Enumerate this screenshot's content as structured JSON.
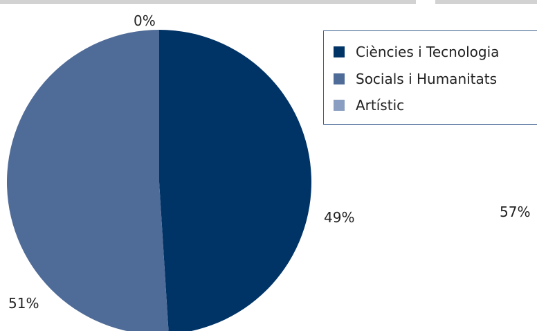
{
  "chart_data": {
    "type": "pie",
    "series": [
      {
        "name": "Ciències i Tecnologia",
        "value": 49,
        "label": "49%",
        "color": "#003366"
      },
      {
        "name": "Socials i Humanitats",
        "value": 51,
        "label": "51%",
        "color": "#4f6b97"
      },
      {
        "name": "Artístic",
        "value": 0,
        "label": "0%",
        "color": "#8a9ec2"
      }
    ],
    "legend_position": "top-right",
    "extra_labels": [
      "57%"
    ]
  }
}
